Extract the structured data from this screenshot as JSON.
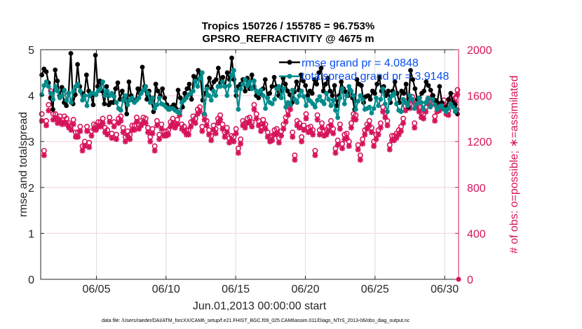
{
  "chart_data": {
    "type": "line",
    "title_line1": "Tropics 150726 / 155785 = 96.753%",
    "title_line2": "GPSRO_REFRACTIVITY @ 4675 m",
    "xlabel": "Jun.01,2013 00:00:00 start",
    "ylabel_left": "rmse and totalspread",
    "ylabel_right": "# of obs: o=possible; ∗=assimilated",
    "footnote": "data file: /Users/raeder/DAI/ATM_forcXX/CAM6_setup/f.e21.FHIST_BGC.f09_025.CAM6assim.011/Diags_NTrS_2013-06/obs_diag_output.nc",
    "xlim_days": [
      1.0,
      31.0
    ],
    "ylim_left": [
      0,
      5
    ],
    "ylim_right": [
      0,
      2000
    ],
    "grid": true,
    "legend_position": "top-right",
    "x_ticks": [
      {
        "day": 5,
        "label": "06/05"
      },
      {
        "day": 10,
        "label": "06/10"
      },
      {
        "day": 15,
        "label": "06/15"
      },
      {
        "day": 20,
        "label": "06/20"
      },
      {
        "day": 25,
        "label": "06/25"
      },
      {
        "day": 30,
        "label": "06/30"
      }
    ],
    "y_ticks_left": [
      {
        "value": 0,
        "label": "0"
      },
      {
        "value": 1,
        "label": "1"
      },
      {
        "value": 2,
        "label": "2"
      },
      {
        "value": 3,
        "label": "3"
      },
      {
        "value": 4,
        "label": "4"
      },
      {
        "value": 5,
        "label": "5"
      }
    ],
    "y_ticks_right": [
      {
        "value": 0,
        "label": "0"
      },
      {
        "value": 400,
        "label": "400"
      },
      {
        "value": 800,
        "label": "800"
      },
      {
        "value": 1200,
        "label": "1200"
      },
      {
        "value": 1600,
        "label": "1600"
      },
      {
        "value": 2000,
        "label": "2000"
      }
    ],
    "series": [
      {
        "name": "rmse grand pr = 4.0848",
        "axis": "left",
        "color": "#000000",
        "values": [
          4.45,
          4.58,
          4.52,
          4.28,
          3.95,
          3.7,
          4.56,
          4.32,
          4.0,
          4.18,
          3.85,
          3.78,
          4.05,
          4.92,
          3.82,
          4.02,
          4.68,
          4.2,
          4.05,
          4.0,
          4.45,
          4.1,
          4.0,
          3.8,
          4.88,
          4.2,
          4.32,
          4.1,
          3.82,
          4.2,
          3.8,
          3.85,
          3.85,
          4.15,
          4.28,
          3.92,
          4.1,
          3.95,
          3.6,
          4.3,
          4.0,
          3.9,
          3.9,
          4.15,
          4.05,
          4.62,
          4.2,
          3.92,
          4.1,
          3.9,
          3.65,
          4.25,
          4.1,
          4.0,
          4.15,
          3.95,
          3.8,
          3.7,
          3.75,
          3.8,
          3.72,
          4.12,
          3.95,
          3.75,
          4.05,
          4.15,
          4.25,
          3.92,
          4.42,
          4.35,
          4.55,
          4.4,
          3.9,
          4.05,
          4.2,
          4.38,
          4.15,
          4.3,
          4.35,
          4.6,
          4.28,
          4.4,
          4.2,
          4.5,
          4.35,
          4.82,
          4.35,
          4.0,
          4.2,
          4.25,
          4.35,
          4.1,
          4.38,
          4.15,
          4.45,
          4.2,
          4.0,
          3.95,
          4.05,
          4.15,
          4.35,
          3.95,
          4.05,
          4.2,
          4.4,
          4.2,
          4.0,
          4.1,
          4.38,
          4.25,
          4.1,
          4.02,
          3.85,
          4.08,
          4.3,
          4.12,
          4.45,
          4.32,
          4.22,
          4.0,
          4.1,
          4.05,
          4.35,
          4.25,
          4.5,
          4.6,
          4.1,
          4.25,
          4.38,
          4.1,
          4.0,
          4.22,
          3.78,
          4.0,
          4.3,
          4.15,
          4.08,
          4.0,
          4.12,
          3.95,
          3.7,
          4.35,
          4.25,
          4.22,
          3.85,
          3.98,
          4.0,
          3.92,
          4.1,
          4.05,
          4.25,
          4.4,
          4.1,
          4.2,
          4.0,
          4.1,
          3.85,
          4.1,
          4.3,
          4.05,
          3.85,
          4.1,
          4.05,
          4.25,
          3.75,
          4.55,
          4.35,
          4.15,
          3.92,
          3.95,
          4.05,
          4.1,
          4.3,
          4.22,
          4.12,
          4.0,
          3.9,
          3.85,
          4.2,
          3.85,
          3.7,
          3.75,
          3.92,
          4.05,
          3.85,
          3.8,
          3.6
        ]
      },
      {
        "name": "totalspread grand pr = 3.9148",
        "axis": "left",
        "color": "#008b8b",
        "values": [
          4.02,
          4.22,
          4.3,
          4.2,
          4.05,
          3.92,
          4.2,
          4.1,
          3.95,
          4.0,
          4.12,
          3.9,
          4.05,
          3.85,
          4.1,
          4.2,
          4.25,
          4.1,
          3.9,
          4.0,
          3.78,
          4.0,
          4.05,
          4.05,
          4.02,
          4.1,
          4.15,
          4.3,
          4.0,
          4.1,
          4.0,
          4.05,
          3.98,
          3.85,
          3.72,
          3.68,
          3.9,
          4.0,
          3.8,
          3.9,
          3.95,
          3.85,
          3.9,
          3.95,
          4.05,
          4.12,
          4.2,
          4.05,
          3.85,
          3.95,
          3.72,
          3.8,
          3.95,
          3.82,
          3.8,
          3.75,
          3.7,
          3.72,
          3.72,
          3.68,
          3.65,
          3.62,
          3.85,
          3.9,
          3.95,
          4.02,
          4.05,
          4.1,
          4.32,
          4.2,
          4.38,
          4.5,
          3.6,
          4.15,
          4.0,
          3.9,
          4.1,
          4.0,
          4.2,
          4.2,
          4.3,
          4.2,
          4.0,
          4.22,
          4.45,
          4.55,
          4.1,
          3.7,
          4.15,
          4.25,
          4.35,
          4.22,
          4.3,
          4.15,
          4.32,
          4.1,
          4.05,
          4.12,
          4.0,
          3.72,
          3.95,
          3.85,
          3.82,
          3.92,
          4.15,
          4.2,
          3.95,
          4.15,
          3.75,
          3.85,
          3.8,
          4.12,
          3.92,
          3.85,
          4.0,
          4.1,
          3.98,
          3.78,
          3.92,
          3.88,
          3.82,
          3.75,
          3.9,
          3.98,
          3.88,
          3.82,
          4.05,
          3.92,
          3.78,
          3.9,
          3.68,
          3.52,
          3.95,
          4.15,
          3.82,
          4.0,
          4.2,
          4.1,
          4.0,
          3.7,
          3.88,
          4.0,
          3.92,
          3.7,
          3.72,
          3.75,
          3.62,
          3.72,
          3.95,
          3.78,
          3.92,
          4.15,
          3.82,
          3.65,
          3.92,
          4.0,
          4.05,
          3.82,
          3.68,
          3.65,
          3.92,
          3.85,
          3.78,
          4.0,
          3.92,
          3.72,
          3.82,
          3.95,
          3.85,
          3.7,
          3.85,
          3.95,
          3.75,
          3.92,
          3.8,
          3.7,
          3.75,
          3.78,
          3.7,
          3.65,
          3.72,
          3.82,
          3.75,
          3.65,
          3.7
        ]
      },
      {
        "name": "obs possible",
        "axis": "right",
        "color": "#d6145a",
        "marker": "circle",
        "values": [
          1440,
          1120,
          1380,
          1520,
          1640,
          1440,
          1440,
          1400,
          1420,
          1390,
          1420,
          1400,
          1360,
          1340,
          1390,
          1280,
          1280,
          1330,
          1160,
          1200,
          1330,
          1190,
          1290,
          1350,
          1340,
          1370,
          1370,
          1400,
          1320,
          1300,
          1410,
          1270,
          1370,
          1260,
          1400,
          1420,
          1320,
          1240,
          1290,
          1260,
          1340,
          1340,
          1410,
          1350,
          1380,
          1410,
          1400,
          1320,
          1240,
          1310,
          1160,
          1380,
          1260,
          1350,
          1290,
          1290,
          1300,
          1370,
          1400,
          1360,
          1390,
          1470,
          1350,
          1330,
          1300,
          1300,
          1370,
          1420,
          1400,
          1480,
          1500,
          1330,
          1430,
          1380,
          1300,
          1250,
          1340,
          1310,
          1400,
          1430,
          1350,
          1280,
          1320,
          1230,
          1250,
          1240,
          1310,
          1140,
          1220,
          1380,
          1360,
          1400,
          1410,
          1370,
          1520,
          1440,
          1380,
          1330,
          1390,
          1350,
          1280,
          1240,
          1250,
          1300,
          1310,
          1230,
          1290,
          1350,
          1410,
          1470,
          1520,
          1280,
          1080,
          1380,
          1360,
          1240,
          1340,
          1440,
          1320,
          1330,
          1300,
          1120,
          1430,
          1300,
          1360,
          1290,
          1300,
          1330,
          1380,
          1310,
          1140,
          1210,
          1350,
          1180,
          1260,
          1270,
          1200,
          1360,
          1440,
          1430,
          1170,
          1080,
          1220,
          1300,
          1350,
          1380,
          1320,
          1200,
          1260,
          1300,
          1360,
          1500,
          1450,
          1380,
          1170,
          1250,
          1250,
          1270,
          1300,
          1330,
          1400,
          1510,
          1560,
          1530,
          1590,
          1360,
          1540,
          1500,
          1450,
          1440,
          1500,
          1570,
          1550,
          1600,
          1420,
          1500,
          1510,
          1530,
          1560,
          1480,
          1470,
          1570,
          1600,
          1580,
          1650
        ]
      },
      {
        "name": "obs assimilated",
        "axis": "right",
        "color": "#d6145a",
        "marker": "asterisk",
        "values": [
          1380,
          1080,
          1340,
          1470,
          1580,
          1390,
          1400,
          1360,
          1380,
          1350,
          1370,
          1350,
          1320,
          1300,
          1350,
          1240,
          1240,
          1290,
          1120,
          1160,
          1290,
          1150,
          1250,
          1310,
          1300,
          1330,
          1330,
          1360,
          1280,
          1260,
          1370,
          1230,
          1330,
          1220,
          1360,
          1380,
          1280,
          1200,
          1250,
          1220,
          1300,
          1300,
          1370,
          1310,
          1340,
          1370,
          1360,
          1280,
          1200,
          1270,
          1120,
          1340,
          1220,
          1310,
          1250,
          1250,
          1260,
          1330,
          1360,
          1320,
          1350,
          1430,
          1310,
          1290,
          1260,
          1260,
          1330,
          1380,
          1360,
          1440,
          1460,
          1290,
          1390,
          1340,
          1260,
          1210,
          1300,
          1270,
          1360,
          1390,
          1310,
          1240,
          1280,
          1190,
          1210,
          1200,
          1270,
          1100,
          1180,
          1340,
          1320,
          1360,
          1370,
          1330,
          1480,
          1400,
          1340,
          1290,
          1350,
          1310,
          1240,
          1200,
          1210,
          1260,
          1270,
          1190,
          1250,
          1310,
          1370,
          1430,
          1480,
          1240,
          1040,
          1340,
          1320,
          1200,
          1300,
          1400,
          1280,
          1290,
          1260,
          1080,
          1390,
          1260,
          1320,
          1250,
          1260,
          1290,
          1340,
          1270,
          1100,
          1170,
          1310,
          1140,
          1220,
          1230,
          1160,
          1320,
          1400,
          1390,
          1130,
          1040,
          1180,
          1260,
          1310,
          1340,
          1280,
          1160,
          1220,
          1260,
          1320,
          1460,
          1410,
          1340,
          1130,
          1210,
          1210,
          1230,
          1260,
          1290,
          1360,
          1470,
          1520,
          1490,
          1550,
          1320,
          1500,
          1460,
          1410,
          1400,
          1460,
          1530,
          1510,
          1560,
          1380,
          1460,
          1470,
          1490,
          1520,
          1440,
          1430,
          1530,
          1560,
          1540,
          1610
        ]
      }
    ],
    "legend": [
      {
        "label": "rmse grand pr = 4.0848",
        "color": "#000000"
      },
      {
        "label": "totalspread grand pr = 3.9148",
        "color": "#008b8b"
      }
    ]
  }
}
